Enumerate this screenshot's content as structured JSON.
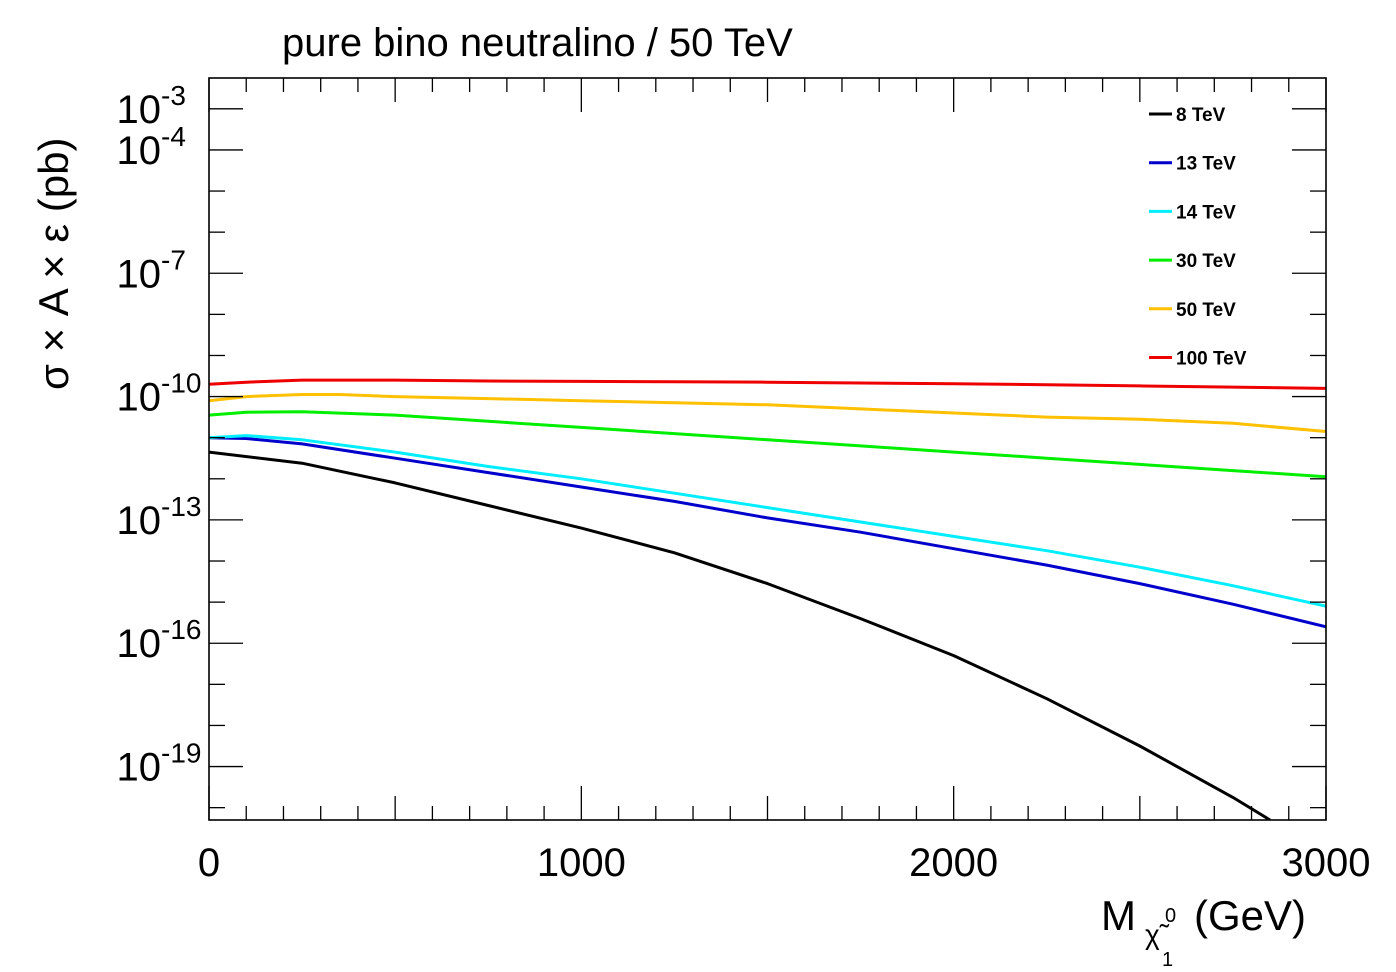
{
  "chart_data": {
    "type": "line",
    "title": "pure bino neutralino / 50 TeV",
    "ylabel": "σ × A × ε (pb)",
    "xlabel": {
      "main": "M",
      "sub": "χ̃",
      "sup": "0",
      "subsub": "1",
      "units": "(GeV)"
    },
    "xlim": [
      0,
      3000
    ],
    "ylim_log10": [
      -20.3,
      -2.25
    ],
    "x_ticks": [
      0,
      1000,
      2000,
      3000
    ],
    "x_tick_labels": [
      "0",
      "1000",
      "2000",
      "3000"
    ],
    "y_ticks": [
      {
        "base": "10",
        "exp": "-3",
        "log10": -3
      },
      {
        "base": "10",
        "exp": "-4",
        "log10": -4
      },
      {
        "base": "10",
        "exp": "-7",
        "log10": -7
      },
      {
        "base": "10",
        "exp": "-10",
        "log10": -10
      },
      {
        "base": "10",
        "exp": "-13",
        "log10": -13
      },
      {
        "base": "10",
        "exp": "-16",
        "log10": -16
      },
      {
        "base": "10",
        "exp": "-19",
        "log10": -19
      }
    ],
    "legend_position": "top-right",
    "series": [
      {
        "name": "8 TeV",
        "color": "#000000",
        "x": [
          0,
          250,
          500,
          750,
          1000,
          1250,
          1500,
          1750,
          2000,
          2250,
          2500,
          2750,
          2850
        ],
        "log10_y": [
          -11.35,
          -11.62,
          -12.1,
          -12.65,
          -13.2,
          -13.8,
          -14.55,
          -15.4,
          -16.3,
          -17.35,
          -18.5,
          -19.75,
          -20.3
        ]
      },
      {
        "name": "13 TeV",
        "color": "#0000cc",
        "x": [
          0,
          100,
          250,
          500,
          750,
          1000,
          1250,
          1500,
          1750,
          2000,
          2250,
          2500,
          2750,
          3000
        ],
        "log10_y": [
          -11.0,
          -11.02,
          -11.15,
          -11.5,
          -11.85,
          -12.2,
          -12.55,
          -12.95,
          -13.3,
          -13.7,
          -14.1,
          -14.55,
          -15.05,
          -15.6
        ]
      },
      {
        "name": "14 TeV",
        "color": "#00eeff",
        "x": [
          0,
          100,
          250,
          500,
          750,
          1000,
          1250,
          1500,
          1750,
          2000,
          2250,
          2500,
          2750,
          3000
        ],
        "log10_y": [
          -11.0,
          -10.95,
          -11.05,
          -11.35,
          -11.7,
          -12.0,
          -12.35,
          -12.7,
          -13.05,
          -13.4,
          -13.75,
          -14.15,
          -14.6,
          -15.1
        ]
      },
      {
        "name": "30 TeV",
        "color": "#00ee00",
        "x": [
          0,
          100,
          250,
          500,
          750,
          1000,
          1250,
          1500,
          1750,
          2000,
          2250,
          2500,
          2750,
          3000
        ],
        "log10_y": [
          -10.45,
          -10.38,
          -10.37,
          -10.45,
          -10.6,
          -10.75,
          -10.9,
          -11.05,
          -11.2,
          -11.35,
          -11.5,
          -11.65,
          -11.8,
          -11.95
        ]
      },
      {
        "name": "50 TeV",
        "color": "#ffc000",
        "x": [
          0,
          100,
          250,
          350,
          500,
          750,
          1000,
          1250,
          1500,
          1750,
          2000,
          2250,
          2500,
          2750,
          3000
        ],
        "log10_y": [
          -10.1,
          -10.0,
          -9.95,
          -9.95,
          -10.0,
          -10.05,
          -10.1,
          -10.15,
          -10.2,
          -10.3,
          -10.4,
          -10.5,
          -10.55,
          -10.65,
          -10.85
        ]
      },
      {
        "name": "100 TeV",
        "color": "#ee0000",
        "x": [
          0,
          100,
          250,
          500,
          750,
          1000,
          1250,
          1500,
          1750,
          2000,
          2250,
          2500,
          2750,
          3000
        ],
        "log10_y": [
          -9.7,
          -9.65,
          -9.6,
          -9.6,
          -9.62,
          -9.63,
          -9.64,
          -9.65,
          -9.67,
          -9.69,
          -9.71,
          -9.74,
          -9.77,
          -9.8
        ]
      }
    ]
  }
}
